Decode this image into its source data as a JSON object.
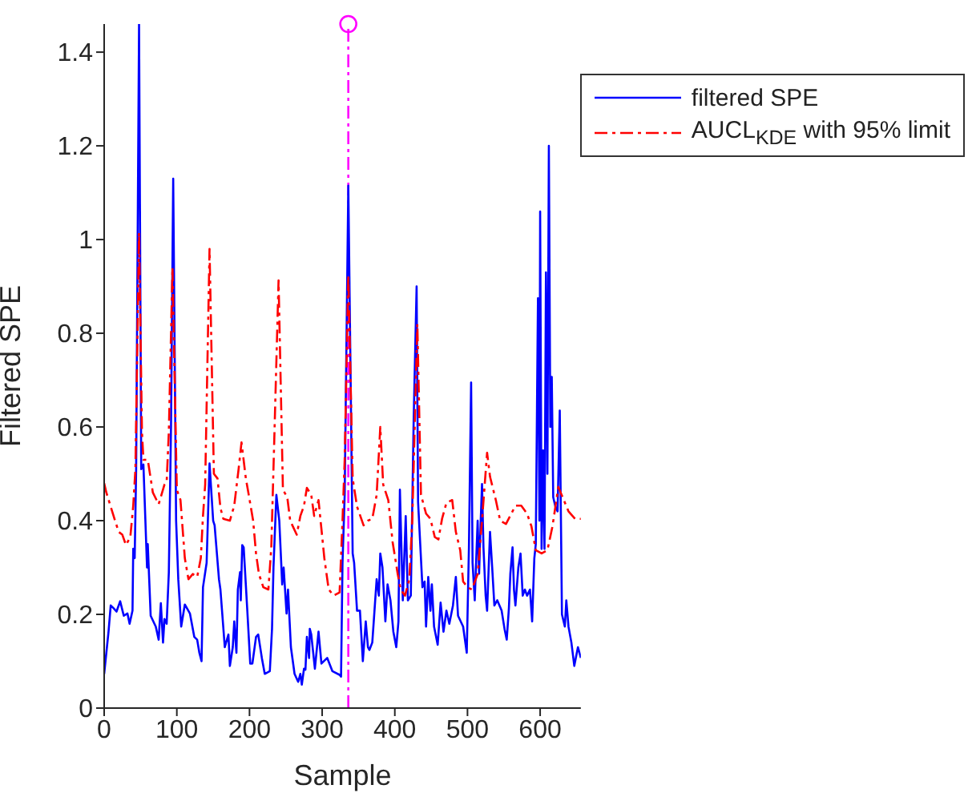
{
  "chart_data": {
    "type": "line",
    "xlabel": "Sample",
    "ylabel": "Filtered SPE",
    "xlim": [
      0,
      656
    ],
    "ylim": [
      0,
      1.46
    ],
    "xticks": [
      0,
      100,
      200,
      300,
      400,
      500,
      600
    ],
    "yticks": [
      0,
      0.2,
      0.4,
      0.6,
      0.8,
      1,
      1.2,
      1.4
    ],
    "grid": false,
    "legend": "top right",
    "marker": "none",
    "series": [
      {
        "name": "filtered SPE",
        "color": "#0000ff",
        "line_style": "solid",
        "x": [
          0,
          3,
          6,
          9,
          13,
          17,
          22,
          27,
          32,
          35,
          39,
          40,
          42,
          44,
          48,
          51,
          54,
          59,
          60,
          64,
          71,
          75,
          78,
          81,
          83,
          86,
          89,
          92,
          95,
          99,
          102,
          106,
          111,
          118,
          124,
          128,
          131,
          134,
          136,
          141,
          145,
          150,
          152,
          158,
          160,
          166,
          171,
          173,
          177,
          179,
          182,
          184,
          187,
          188,
          190,
          192,
          197,
          201,
          204,
          209,
          212,
          217,
          221,
          228,
          231,
          233,
          237,
          241,
          245,
          247,
          251,
          253,
          257,
          262,
          267,
          270,
          272,
          275,
          277,
          279,
          282,
          283,
          285,
          290,
          295,
          299,
          307,
          314,
          324,
          326,
          328,
          331,
          336,
          342,
          344,
          348,
          352,
          356,
          360,
          363,
          365,
          369,
          375,
          378,
          380,
          383,
          387,
          390,
          394,
          398,
          402,
          405,
          407,
          411,
          415,
          418,
          422,
          426,
          430,
          432,
          438,
          441,
          443,
          446,
          449,
          451,
          454,
          459,
          463,
          467,
          471,
          475,
          480,
          484,
          487,
          494,
          499,
          502,
          505,
          507,
          510,
          514,
          516,
          518,
          520,
          522,
          525,
          527,
          531,
          534,
          537,
          541,
          547,
          551,
          554,
          557,
          559,
          562,
          564,
          566,
          570,
          573,
          576,
          579,
          582,
          586,
          589,
          592,
          594,
          597,
          599,
          600,
          602,
          604,
          606,
          608,
          610,
          612,
          614,
          616,
          618,
          621,
          624,
          627,
          630,
          634,
          636,
          639,
          643,
          647,
          652,
          656
        ],
        "values": [
          0.073,
          0.118,
          0.163,
          0.219,
          0.213,
          0.206,
          0.228,
          0.197,
          0.202,
          0.18,
          0.208,
          0.34,
          0.32,
          0.51,
          1.46,
          0.51,
          0.52,
          0.3,
          0.35,
          0.197,
          0.174,
          0.146,
          0.224,
          0.14,
          0.19,
          0.18,
          0.29,
          0.6,
          1.13,
          0.4,
          0.275,
          0.174,
          0.221,
          0.202,
          0.152,
          0.146,
          0.118,
          0.1,
          0.258,
          0.31,
          0.522,
          0.4,
          0.39,
          0.275,
          0.253,
          0.13,
          0.157,
          0.09,
          0.13,
          0.185,
          0.118,
          0.253,
          0.29,
          0.23,
          0.348,
          0.343,
          0.208,
          0.095,
          0.095,
          0.152,
          0.157,
          0.107,
          0.073,
          0.079,
          0.169,
          0.3,
          0.455,
          0.4,
          0.264,
          0.3,
          0.202,
          0.253,
          0.13,
          0.073,
          0.056,
          0.073,
          0.05,
          0.084,
          0.082,
          0.152,
          0.107,
          0.169,
          0.157,
          0.084,
          0.163,
          0.095,
          0.107,
          0.079,
          0.071,
          0.067,
          0.31,
          0.455,
          1.115,
          0.33,
          0.31,
          0.208,
          0.208,
          0.1,
          0.185,
          0.13,
          0.124,
          0.14,
          0.275,
          0.24,
          0.33,
          0.3,
          0.185,
          0.264,
          0.23,
          0.163,
          0.13,
          0.185,
          0.466,
          0.23,
          0.41,
          0.23,
          0.24,
          0.62,
          0.9,
          0.44,
          0.258,
          0.27,
          0.174,
          0.28,
          0.208,
          0.264,
          0.174,
          0.135,
          0.225,
          0.163,
          0.208,
          0.18,
          0.219,
          0.28,
          0.197,
          0.174,
          0.118,
          0.343,
          0.695,
          0.31,
          0.23,
          0.4,
          0.287,
          0.39,
          0.478,
          0.343,
          0.24,
          0.208,
          0.376,
          0.3,
          0.219,
          0.23,
          0.208,
          0.169,
          0.146,
          0.213,
          0.287,
          0.343,
          0.253,
          0.219,
          0.3,
          0.33,
          0.24,
          0.253,
          0.24,
          0.253,
          0.185,
          0.32,
          0.35,
          0.875,
          0.4,
          1.06,
          0.34,
          0.55,
          0.34,
          0.93,
          0.5,
          1.2,
          0.6,
          0.707,
          0.45,
          0.43,
          0.42,
          0.635,
          0.2,
          0.174,
          0.23,
          0.174,
          0.14,
          0.09,
          0.13,
          0.107
        ]
      },
      {
        "name": "AUCL$_{KDE}$ with 95% limit",
        "color": "#ff0000",
        "line_style": "dashdot",
        "x": [
          0,
          3,
          9,
          15,
          20,
          25,
          30,
          36,
          40,
          43,
          48,
          52,
          54,
          60,
          67,
          75,
          83,
          86,
          89,
          94,
          100,
          105,
          111,
          116,
          122,
          128,
          133,
          136,
          139,
          145,
          151,
          156,
          160,
          164,
          173,
          179,
          185,
          189,
          195,
          199,
          205,
          209,
          213,
          219,
          226,
          230,
          234,
          240,
          246,
          252,
          256,
          265,
          270,
          275,
          279,
          285,
          289,
          295,
          303,
          309,
          316,
          324,
          328,
          331,
          336,
          342,
          348,
          357,
          363,
          369,
          375,
          380,
          384,
          391,
          397,
          404,
          408,
          414,
          420,
          424,
          431,
          436,
          443,
          449,
          455,
          460,
          465,
          471,
          479,
          484,
          490,
          494,
          500,
          506,
          514,
          520,
          527,
          531,
          539,
          545,
          553,
          566,
          574,
          582,
          588,
          594,
          602,
          610,
          617,
          625,
          631,
          639,
          648,
          656
        ],
        "values": [
          0.48,
          0.46,
          0.43,
          0.4,
          0.376,
          0.37,
          0.348,
          0.365,
          0.432,
          0.51,
          1.015,
          0.59,
          0.53,
          0.53,
          0.46,
          0.435,
          0.477,
          0.483,
          0.59,
          0.94,
          0.466,
          0.444,
          0.32,
          0.275,
          0.286,
          0.28,
          0.32,
          0.41,
          0.477,
          0.98,
          0.5,
          0.49,
          0.427,
          0.404,
          0.4,
          0.432,
          0.51,
          0.567,
          0.49,
          0.455,
          0.4,
          0.33,
          0.286,
          0.258,
          0.253,
          0.343,
          0.567,
          0.913,
          0.466,
          0.45,
          0.4,
          0.37,
          0.41,
          0.432,
          0.47,
          0.455,
          0.41,
          0.444,
          0.32,
          0.253,
          0.24,
          0.247,
          0.4,
          0.53,
          0.925,
          0.49,
          0.43,
          0.39,
          0.4,
          0.404,
          0.455,
          0.6,
          0.477,
          0.444,
          0.354,
          0.286,
          0.253,
          0.24,
          0.275,
          0.4,
          0.82,
          0.455,
          0.415,
          0.404,
          0.365,
          0.36,
          0.404,
          0.438,
          0.444,
          0.376,
          0.337,
          0.27,
          0.258,
          0.253,
          0.286,
          0.4,
          0.545,
          0.494,
          0.444,
          0.4,
          0.393,
          0.432,
          0.432,
          0.415,
          0.388,
          0.337,
          0.33,
          0.337,
          0.388,
          0.472,
          0.45,
          0.42,
          0.404,
          0.404
        ]
      }
    ],
    "ref_lines": [
      {
        "axis": "x",
        "value": 336,
        "color": "#ff00ff",
        "line_style": "dashdot"
      }
    ]
  }
}
